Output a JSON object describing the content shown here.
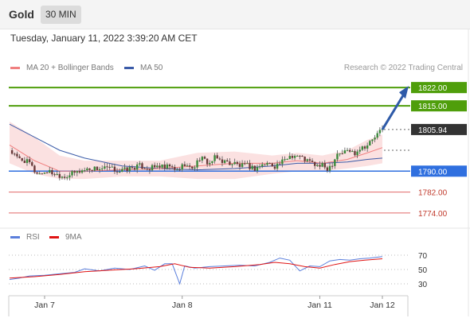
{
  "header": {
    "instrument": "Gold",
    "timeframe": "30 MIN"
  },
  "date_line": "Tuesday, January 11, 2022 3:39:20 AM CET",
  "credit": "Research © 2022 Trading Central",
  "legend": {
    "ma20": "MA 20 + Bollinger Bands",
    "ma50": "MA 50",
    "rsi": "RSI",
    "ma9": "9MA"
  },
  "colors": {
    "green": "#4f9e0b",
    "blue_level": "#2f6fdf",
    "red_level": "#e06666",
    "arrow": "#2e5aa8",
    "ma20": "#f08080",
    "ma50": "#3b5ba8",
    "rsi": "#5b7fdc",
    "ma9": "#e01414",
    "band_fill": "#fbe1e1"
  },
  "chart_data": [
    {
      "type": "candlestick",
      "title": "Gold 30 MIN",
      "ylim": [
        1770,
        1826
      ],
      "last_price": 1805.94,
      "levels": [
        {
          "value": 1822.0,
          "label": "1822.00",
          "style": "resistance"
        },
        {
          "value": 1815.0,
          "label": "1815.00",
          "style": "resistance"
        },
        {
          "value": 1805.94,
          "label": "1805.94",
          "style": "last"
        },
        {
          "value": 1790.0,
          "label": "1790.00",
          "style": "pivot"
        },
        {
          "value": 1782.0,
          "label": "1782.00",
          "style": "support"
        },
        {
          "value": 1774.0,
          "label": "1774.00",
          "style": "support"
        }
      ],
      "x_ticks": [
        {
          "label": "Jan 7",
          "bar": 14
        },
        {
          "label": "Jan 8",
          "bar": 69
        },
        {
          "label": "Jan 11",
          "bar": 124
        },
        {
          "label": "Jan 12",
          "bar": 149
        }
      ],
      "bar_count": 150,
      "close_path": [
        [
          0,
          1798
        ],
        [
          3,
          1795
        ],
        [
          6,
          1794
        ],
        [
          8,
          1793
        ],
        [
          10,
          1790
        ],
        [
          12,
          1789
        ],
        [
          15,
          1790
        ],
        [
          18,
          1789
        ],
        [
          22,
          1788
        ],
        [
          25,
          1789
        ],
        [
          28,
          1790
        ],
        [
          32,
          1791
        ],
        [
          36,
          1791
        ],
        [
          40,
          1791
        ],
        [
          44,
          1790
        ],
        [
          48,
          1791
        ],
        [
          52,
          1792
        ],
        [
          56,
          1791
        ],
        [
          60,
          1792
        ],
        [
          62,
          1791
        ],
        [
          64,
          1792
        ],
        [
          66,
          1790
        ],
        [
          68,
          1791
        ],
        [
          70,
          1793
        ],
        [
          72,
          1791
        ],
        [
          74,
          1792
        ],
        [
          76,
          1795
        ],
        [
          78,
          1794
        ],
        [
          80,
          1793
        ],
        [
          82,
          1795
        ],
        [
          85,
          1794
        ],
        [
          88,
          1793
        ],
        [
          90,
          1793
        ],
        [
          92,
          1792
        ],
        [
          95,
          1792
        ],
        [
          98,
          1791
        ],
        [
          100,
          1792
        ],
        [
          103,
          1793
        ],
        [
          106,
          1792
        ],
        [
          108,
          1793
        ],
        [
          110,
          1794
        ],
        [
          112,
          1796
        ],
        [
          115,
          1796
        ],
        [
          117,
          1795
        ],
        [
          119,
          1794
        ],
        [
          121,
          1793
        ],
        [
          123,
          1792
        ],
        [
          125,
          1792
        ],
        [
          127,
          1791
        ],
        [
          129,
          1793
        ],
        [
          131,
          1797
        ],
        [
          133,
          1797
        ],
        [
          135,
          1798
        ],
        [
          138,
          1797
        ],
        [
          140,
          1799
        ],
        [
          143,
          1800
        ],
        [
          146,
          1803
        ],
        [
          148,
          1805
        ],
        [
          149,
          1805.94
        ]
      ],
      "ma20_path": [
        [
          0,
          1800
        ],
        [
          10,
          1794
        ],
        [
          20,
          1790
        ],
        [
          30,
          1790
        ],
        [
          45,
          1790.5
        ],
        [
          60,
          1791
        ],
        [
          75,
          1792
        ],
        [
          90,
          1793
        ],
        [
          105,
          1793
        ],
        [
          115,
          1794
        ],
        [
          125,
          1793
        ],
        [
          135,
          1794.5
        ],
        [
          143,
          1797
        ],
        [
          149,
          1799
        ]
      ],
      "ma50_path": [
        [
          0,
          1808
        ],
        [
          10,
          1803
        ],
        [
          20,
          1798
        ],
        [
          30,
          1795
        ],
        [
          45,
          1792
        ],
        [
          60,
          1791
        ],
        [
          75,
          1790.5
        ],
        [
          90,
          1791
        ],
        [
          105,
          1792
        ],
        [
          115,
          1793
        ],
        [
          125,
          1793
        ],
        [
          135,
          1793.5
        ],
        [
          143,
          1794.5
        ],
        [
          149,
          1795
        ]
      ],
      "band_upper": [
        [
          0,
          1809
        ],
        [
          10,
          1803
        ],
        [
          20,
          1796
        ],
        [
          30,
          1794
        ],
        [
          45,
          1794
        ],
        [
          60,
          1794
        ],
        [
          75,
          1797
        ],
        [
          90,
          1797.5
        ],
        [
          105,
          1796
        ],
        [
          115,
          1797
        ],
        [
          125,
          1796
        ],
        [
          135,
          1798
        ],
        [
          143,
          1802
        ],
        [
          149,
          1804
        ]
      ],
      "band_lower": [
        [
          0,
          1793
        ],
        [
          10,
          1789
        ],
        [
          20,
          1787
        ],
        [
          30,
          1787
        ],
        [
          45,
          1788
        ],
        [
          60,
          1788
        ],
        [
          75,
          1787
        ],
        [
          90,
          1787
        ],
        [
          105,
          1789
        ],
        [
          115,
          1790
        ],
        [
          125,
          1790
        ],
        [
          135,
          1791
        ],
        [
          143,
          1792
        ],
        [
          149,
          1793
        ]
      ],
      "projection": {
        "from_value": 1805.94,
        "to_value": 1822
      }
    },
    {
      "type": "line",
      "title": "RSI",
      "ylim": [
        20,
        80
      ],
      "y_ticks": [
        30,
        50,
        70
      ],
      "series": [
        {
          "name": "RSI",
          "points": [
            [
              0,
              36
            ],
            [
              4,
              38
            ],
            [
              8,
              41
            ],
            [
              14,
              42
            ],
            [
              20,
              44
            ],
            [
              26,
              46
            ],
            [
              30,
              51
            ],
            [
              36,
              48
            ],
            [
              42,
              52
            ],
            [
              48,
              50
            ],
            [
              54,
              55
            ],
            [
              58,
              49
            ],
            [
              62,
              58
            ],
            [
              65,
              58
            ],
            [
              68,
              30
            ],
            [
              70,
              55
            ],
            [
              74,
              52
            ],
            [
              80,
              54
            ],
            [
              86,
              55
            ],
            [
              92,
              56
            ],
            [
              98,
              55
            ],
            [
              104,
              60
            ],
            [
              108,
              66
            ],
            [
              112,
              63
            ],
            [
              116,
              48
            ],
            [
              120,
              55
            ],
            [
              124,
              54
            ],
            [
              128,
              62
            ],
            [
              132,
              64
            ],
            [
              136,
              63
            ],
            [
              140,
              65
            ],
            [
              144,
              66
            ],
            [
              149,
              68
            ]
          ]
        },
        {
          "name": "9MA",
          "points": [
            [
              0,
              38
            ],
            [
              10,
              40
            ],
            [
              20,
              43
            ],
            [
              30,
              47
            ],
            [
              40,
              49
            ],
            [
              50,
              51
            ],
            [
              60,
              54
            ],
            [
              66,
              58
            ],
            [
              72,
              53
            ],
            [
              80,
              52
            ],
            [
              90,
              54
            ],
            [
              100,
              57
            ],
            [
              106,
              60
            ],
            [
              112,
              58
            ],
            [
              118,
              54
            ],
            [
              124,
              52
            ],
            [
              130,
              57
            ],
            [
              136,
              61
            ],
            [
              142,
              63
            ],
            [
              149,
              65
            ]
          ]
        }
      ]
    }
  ]
}
